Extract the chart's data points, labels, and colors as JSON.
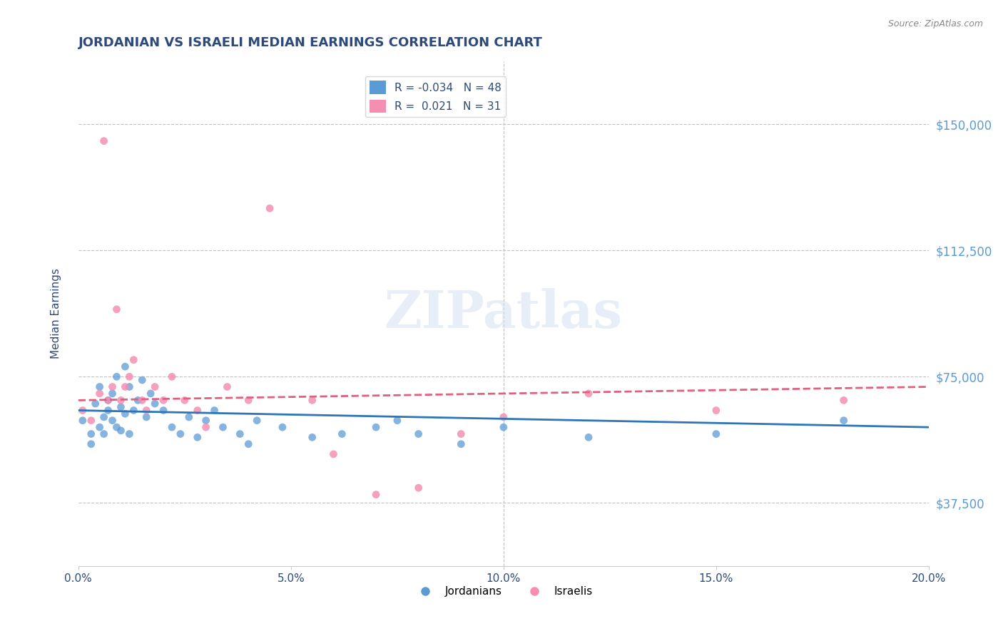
{
  "title": "JORDANIAN VS ISRAELI MEDIAN EARNINGS CORRELATION CHART",
  "source": "Source: ZipAtlas.com",
  "xlabel": "",
  "ylabel": "Median Earnings",
  "xlim": [
    0.0,
    0.2
  ],
  "ylim": [
    18750,
    168750
  ],
  "yticks": [
    37500,
    75000,
    112500,
    150000
  ],
  "ytick_labels": [
    "$37,500",
    "$75,000",
    "$112,500",
    "$150,000"
  ],
  "xticks": [
    0.0,
    0.05,
    0.1,
    0.15,
    0.2
  ],
  "xtick_labels": [
    "0.0%",
    "5.0%",
    "10.0%",
    "15.0%",
    "20.0%"
  ],
  "legend_entries": [
    {
      "label": "R = -0.034   N = 48",
      "color": "#aec6e8"
    },
    {
      "label": "R =  0.021   N = 31",
      "color": "#f4b8c8"
    }
  ],
  "legend_labels": [
    "Jordanians",
    "Israelis"
  ],
  "jordanians_color": "#5b9bd5",
  "israelis_color": "#f48fb1",
  "trend_jordan_color": "#2e75b6",
  "trend_israel_color": "#e06080",
  "background_color": "#ffffff",
  "grid_color": "#c0c0c0",
  "title_color": "#2e4a7a",
  "axis_label_color": "#2e4a7a",
  "tick_label_color": "#5b9bd5",
  "watermark": "ZIPatlas",
  "jordanians_x": [
    0.001,
    0.003,
    0.003,
    0.004,
    0.005,
    0.005,
    0.006,
    0.006,
    0.007,
    0.007,
    0.008,
    0.008,
    0.009,
    0.009,
    0.01,
    0.01,
    0.011,
    0.011,
    0.012,
    0.012,
    0.013,
    0.014,
    0.015,
    0.016,
    0.017,
    0.018,
    0.02,
    0.022,
    0.024,
    0.026,
    0.028,
    0.03,
    0.032,
    0.034,
    0.038,
    0.04,
    0.042,
    0.048,
    0.055,
    0.062,
    0.07,
    0.075,
    0.08,
    0.09,
    0.1,
    0.12,
    0.15,
    0.18
  ],
  "jordanians_y": [
    62000,
    58000,
    55000,
    67000,
    72000,
    60000,
    63000,
    58000,
    65000,
    68000,
    70000,
    62000,
    75000,
    60000,
    66000,
    59000,
    78000,
    64000,
    72000,
    58000,
    65000,
    68000,
    74000,
    63000,
    70000,
    67000,
    65000,
    60000,
    58000,
    63000,
    57000,
    62000,
    65000,
    60000,
    58000,
    55000,
    62000,
    60000,
    57000,
    58000,
    60000,
    62000,
    58000,
    55000,
    60000,
    57000,
    58000,
    62000
  ],
  "israelis_x": [
    0.001,
    0.003,
    0.005,
    0.006,
    0.007,
    0.008,
    0.009,
    0.01,
    0.011,
    0.012,
    0.013,
    0.015,
    0.016,
    0.018,
    0.02,
    0.022,
    0.025,
    0.028,
    0.03,
    0.035,
    0.04,
    0.045,
    0.055,
    0.06,
    0.07,
    0.08,
    0.09,
    0.1,
    0.12,
    0.15,
    0.18
  ],
  "israelis_y": [
    65000,
    62000,
    70000,
    145000,
    68000,
    72000,
    95000,
    68000,
    72000,
    75000,
    80000,
    68000,
    65000,
    72000,
    68000,
    75000,
    68000,
    65000,
    60000,
    72000,
    68000,
    125000,
    68000,
    52000,
    40000,
    42000,
    58000,
    63000,
    70000,
    65000,
    68000
  ],
  "jordan_trend_x": [
    0.0,
    0.2
  ],
  "jordan_trend_y": [
    65000,
    60000
  ],
  "israel_trend_x": [
    0.0,
    0.2
  ],
  "israel_trend_y": [
    68000,
    72000
  ]
}
